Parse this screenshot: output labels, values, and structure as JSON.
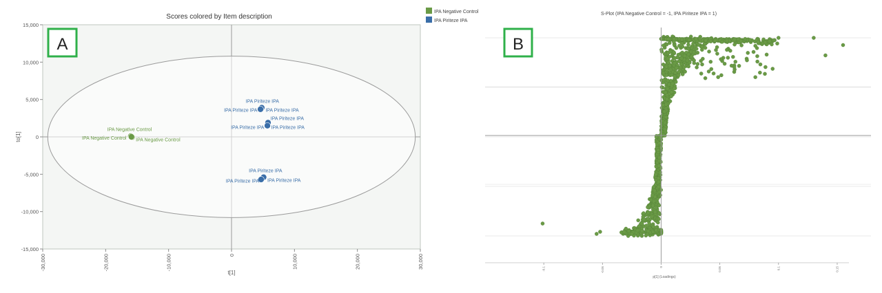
{
  "colors": {
    "negative_control": "#6a9a46",
    "piriteze": "#3a6ea8",
    "panel_label_border": "#2fb04a",
    "plot_bg": "#f4f6f4",
    "axis": "#8a8a8a"
  },
  "chart_data": [
    {
      "type": "scatter",
      "panel_label": "A",
      "title": "Scores colored by Item description",
      "xlabel": "t[1]",
      "ylabel": "to[1]",
      "xlim": [
        -30000,
        30000
      ],
      "ylim": [
        -15000,
        15000
      ],
      "x_ticks": [
        -30000,
        -20000,
        -10000,
        0,
        10000,
        20000,
        30000
      ],
      "x_tick_labels": [
        "-30,000",
        "-20,000",
        "-10,000",
        "0",
        "10,000",
        "20,000",
        "30,000"
      ],
      "y_ticks": [
        15000,
        10000,
        5000,
        0,
        -5000,
        -10000,
        -15000
      ],
      "y_tick_labels": [
        "15,000",
        "10,000",
        "5,000",
        "0",
        "-5,000",
        "-10,000",
        "-15,000"
      ],
      "grid": false,
      "ellipse": {
        "cx": 0,
        "cy": 0,
        "rx": 29200,
        "ry": 10800
      },
      "legend": {
        "placement": "right-top",
        "entries": [
          {
            "label": "IPA Negative Control",
            "color": "#6a9a46"
          },
          {
            "label": "IPA Piriteze IPA",
            "color": "#3a6ea8"
          }
        ]
      },
      "series": [
        {
          "name": "IPA Negative Control",
          "color": "#6a9a46",
          "points": [
            {
              "x": -16000,
              "y": 100
            },
            {
              "x": -15800,
              "y": -50
            },
            {
              "x": -15900,
              "y": 0
            }
          ]
        },
        {
          "name": "IPA Piriteze IPA",
          "color": "#3a6ea8",
          "points": [
            {
              "x": 4800,
              "y": 3900
            },
            {
              "x": 4600,
              "y": 3700
            },
            {
              "x": 5800,
              "y": 1900
            },
            {
              "x": 5700,
              "y": 1500
            },
            {
              "x": 5100,
              "y": -5400
            },
            {
              "x": 4700,
              "y": -5700
            }
          ]
        }
      ],
      "annotations": [
        {
          "text": "IPA Negative Control",
          "x": -16200,
          "y": 1000,
          "anchor": "middle",
          "color": "#6a9a46"
        },
        {
          "text": "IPA Negative Control",
          "x": -16700,
          "y": -150,
          "anchor": "end",
          "color": "#6a9a46"
        },
        {
          "text": "IPA Negative Control",
          "x": -15200,
          "y": -350,
          "anchor": "start",
          "color": "#6a9a46"
        },
        {
          "text": "IPA Piriteze IPA",
          "x": 4900,
          "y": 4800,
          "anchor": "middle",
          "color": "#3a6ea8"
        },
        {
          "text": "IPA Piriteze IPA",
          "x": 4100,
          "y": 3600,
          "anchor": "end",
          "color": "#3a6ea8"
        },
        {
          "text": "IPA Piriteze IPA",
          "x": 5400,
          "y": 3600,
          "anchor": "start",
          "color": "#3a6ea8"
        },
        {
          "text": "IPA Piriteze IPA",
          "x": 6200,
          "y": 2500,
          "anchor": "start",
          "color": "#3a6ea8"
        },
        {
          "text": "IPA Piriteze IPA",
          "x": 5200,
          "y": 1300,
          "anchor": "end",
          "color": "#3a6ea8"
        },
        {
          "text": "IPA Piriteze IPA",
          "x": 6300,
          "y": 1300,
          "anchor": "start",
          "color": "#3a6ea8"
        },
        {
          "text": "IPA Piriteze IPA",
          "x": 5400,
          "y": -4500,
          "anchor": "middle",
          "color": "#3a6ea8"
        },
        {
          "text": "IPA Piriteze IPA",
          "x": 4400,
          "y": -5900,
          "anchor": "end",
          "color": "#3a6ea8"
        },
        {
          "text": "IPA Piriteze IPA",
          "x": 5700,
          "y": -5800,
          "anchor": "start",
          "color": "#3a6ea8"
        }
      ]
    },
    {
      "type": "scatter",
      "panel_label": "B",
      "title": "S-Plot (IPA Negative Control = -1, IPA Piriteze IPA = 1)",
      "xlabel": "p[1] (Loadings)",
      "ylabel": "",
      "xlim": [
        -0.15,
        0.16
      ],
      "ylim": [
        -1.2,
        1.2
      ],
      "x_ticks": [
        -0.1,
        -0.05,
        0,
        0.05,
        0.1,
        0.15
      ],
      "x_tick_labels": [
        "-0.1",
        "-0.05",
        "0",
        "0.05",
        "0.1",
        "0.15"
      ],
      "grid": true,
      "series_color": "#6a9a46",
      "dense_cloud_summary": "several thousand variables forming an S-curve; dense band near p[1]=0 from corr -0.95 to 0.95",
      "outlier_points": [
        {
          "x": -0.101,
          "y": -0.85
        },
        {
          "x": -0.055,
          "y": -0.95
        },
        {
          "x": -0.052,
          "y": -0.93
        },
        {
          "x": -0.03,
          "y": -0.9
        },
        {
          "x": -0.025,
          "y": -0.95
        },
        {
          "x": -0.015,
          "y": -0.75
        },
        {
          "x": 0.068,
          "y": 0.92
        },
        {
          "x": 0.1,
          "y": 0.95
        },
        {
          "x": 0.13,
          "y": 0.95
        },
        {
          "x": 0.14,
          "y": 0.78
        },
        {
          "x": 0.155,
          "y": 0.88
        },
        {
          "x": 0.095,
          "y": 0.65
        },
        {
          "x": 0.082,
          "y": 0.72
        },
        {
          "x": 0.06,
          "y": 0.68
        }
      ]
    }
  ]
}
